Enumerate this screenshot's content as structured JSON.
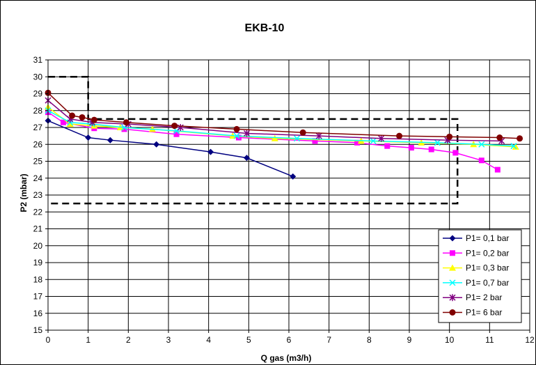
{
  "chart_data": {
    "type": "line",
    "title": "EKB-10",
    "xlabel": "Q gas (m3/h)",
    "ylabel": "P2 (mbar)",
    "xlim": [
      0,
      12
    ],
    "ylim": [
      15,
      31
    ],
    "x_ticks": [
      "0",
      "1",
      "2",
      "3",
      "4",
      "5",
      "6",
      "7",
      "8",
      "9",
      "10",
      "11",
      "12"
    ],
    "y_ticks": [
      "15",
      "16",
      "17",
      "18",
      "19",
      "20",
      "21",
      "22",
      "23",
      "24",
      "25",
      "26",
      "27",
      "28",
      "29",
      "30",
      "31"
    ],
    "grid": true,
    "legend_position": "bottom-right",
    "envelope_dashed": [
      [
        0,
        30
      ],
      [
        1,
        30
      ],
      [
        1,
        27.5
      ],
      [
        10.2,
        27.5
      ],
      [
        10.2,
        22.5
      ],
      [
        0,
        22.5
      ]
    ],
    "series": [
      {
        "name": "P1= 0,1 bar",
        "color": "#000080",
        "marker": "diamond",
        "points": [
          [
            0,
            27.4
          ],
          [
            1,
            26.4
          ],
          [
            1.55,
            26.25
          ],
          [
            2.7,
            26.0
          ],
          [
            4.05,
            25.55
          ],
          [
            4.95,
            25.2
          ],
          [
            6.1,
            24.1
          ]
        ]
      },
      {
        "name": "P1= 0,2 bar",
        "color": "#FF00FF",
        "marker": "square",
        "points": [
          [
            0,
            27.9
          ],
          [
            0.38,
            27.3
          ],
          [
            1.15,
            26.95
          ],
          [
            1.9,
            26.9
          ],
          [
            3.2,
            26.6
          ],
          [
            4.75,
            26.4
          ],
          [
            6.65,
            26.2
          ],
          [
            7.7,
            26.1
          ],
          [
            8.45,
            25.9
          ],
          [
            9.05,
            25.8
          ],
          [
            9.55,
            25.7
          ],
          [
            10.15,
            25.5
          ],
          [
            10.8,
            25.05
          ],
          [
            11.2,
            24.5
          ]
        ]
      },
      {
        "name": "P1= 0,3 bar",
        "color": "#FFFF00",
        "marker": "triangle",
        "points": [
          [
            0,
            28.2
          ],
          [
            0.55,
            27.2
          ],
          [
            1.15,
            27.1
          ],
          [
            1.8,
            27.0
          ],
          [
            2.6,
            26.9
          ],
          [
            4.6,
            26.5
          ],
          [
            5.65,
            26.35
          ],
          [
            7.8,
            26.2
          ],
          [
            9.3,
            26.1
          ],
          [
            10.6,
            26.0
          ],
          [
            11.65,
            25.85
          ]
        ]
      },
      {
        "name": "P1= 0,7 bar",
        "color": "#00FFFF",
        "marker": "x",
        "points": [
          [
            0,
            28.0
          ],
          [
            0.55,
            27.3
          ],
          [
            1.1,
            27.2
          ],
          [
            1.9,
            27.0
          ],
          [
            3.2,
            26.8
          ],
          [
            4.7,
            26.5
          ],
          [
            6.2,
            26.35
          ],
          [
            8.1,
            26.2
          ],
          [
            9.7,
            26.1
          ],
          [
            10.8,
            26.0
          ],
          [
            11.6,
            25.9
          ]
        ]
      },
      {
        "name": "P1= 2 bar",
        "color": "#800080",
        "marker": "star",
        "points": [
          [
            0,
            28.6
          ],
          [
            0.55,
            27.5
          ],
          [
            1.1,
            27.3
          ],
          [
            2.0,
            27.2
          ],
          [
            3.3,
            27.0
          ],
          [
            4.95,
            26.65
          ],
          [
            6.75,
            26.5
          ],
          [
            8.3,
            26.35
          ],
          [
            9.95,
            26.25
          ],
          [
            11.3,
            26.2
          ]
        ]
      },
      {
        "name": "P1= 6 bar",
        "color": "#800000",
        "marker": "circle",
        "points": [
          [
            0,
            29.05
          ],
          [
            0.6,
            27.7
          ],
          [
            0.85,
            27.6
          ],
          [
            1.15,
            27.45
          ],
          [
            1.95,
            27.3
          ],
          [
            3.15,
            27.1
          ],
          [
            4.7,
            26.9
          ],
          [
            6.35,
            26.7
          ],
          [
            8.75,
            26.5
          ],
          [
            10.0,
            26.45
          ],
          [
            11.25,
            26.4
          ],
          [
            11.75,
            26.35
          ]
        ]
      }
    ]
  }
}
